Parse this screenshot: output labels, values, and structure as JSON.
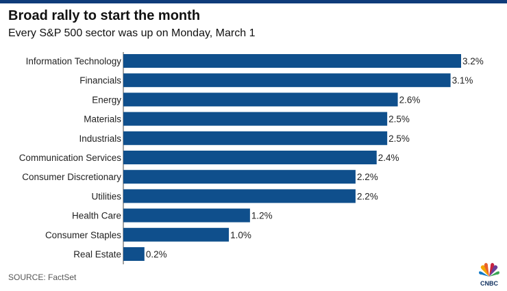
{
  "header": {
    "title": "Broad rally to start the month",
    "subtitle": "Every S&P 500 sector was up on Monday, March 1"
  },
  "footer": {
    "source": "SOURCE: FactSet",
    "logo_text": "CNBC"
  },
  "colors": {
    "bar": "#0f4f8c",
    "top_rule": "#0f3c7a",
    "axis": "#444444",
    "logo_text": "#0b2d5c"
  },
  "chart_data": {
    "type": "bar",
    "orientation": "horizontal",
    "categories": [
      "Information Technology",
      "Financials",
      "Energy",
      "Materials",
      "Industrials",
      "Communication Services",
      "Consumer Discretionary",
      "Utilities",
      "Health Care",
      "Consumer Staples",
      "Real Estate"
    ],
    "values": [
      3.2,
      3.1,
      2.6,
      2.5,
      2.5,
      2.4,
      2.2,
      2.2,
      1.2,
      1.0,
      0.2
    ],
    "value_labels": [
      "3.2%",
      "3.1%",
      "2.6%",
      "2.5%",
      "2.5%",
      "2.4%",
      "2.2%",
      "2.2%",
      "1.2%",
      "1.0%",
      "0.2%"
    ],
    "title": "Broad rally to start the month",
    "subtitle": "Every S&P 500 sector was up on Monday, March 1",
    "xlim": [
      0,
      3.2
    ],
    "grid": false,
    "legend": "none"
  }
}
